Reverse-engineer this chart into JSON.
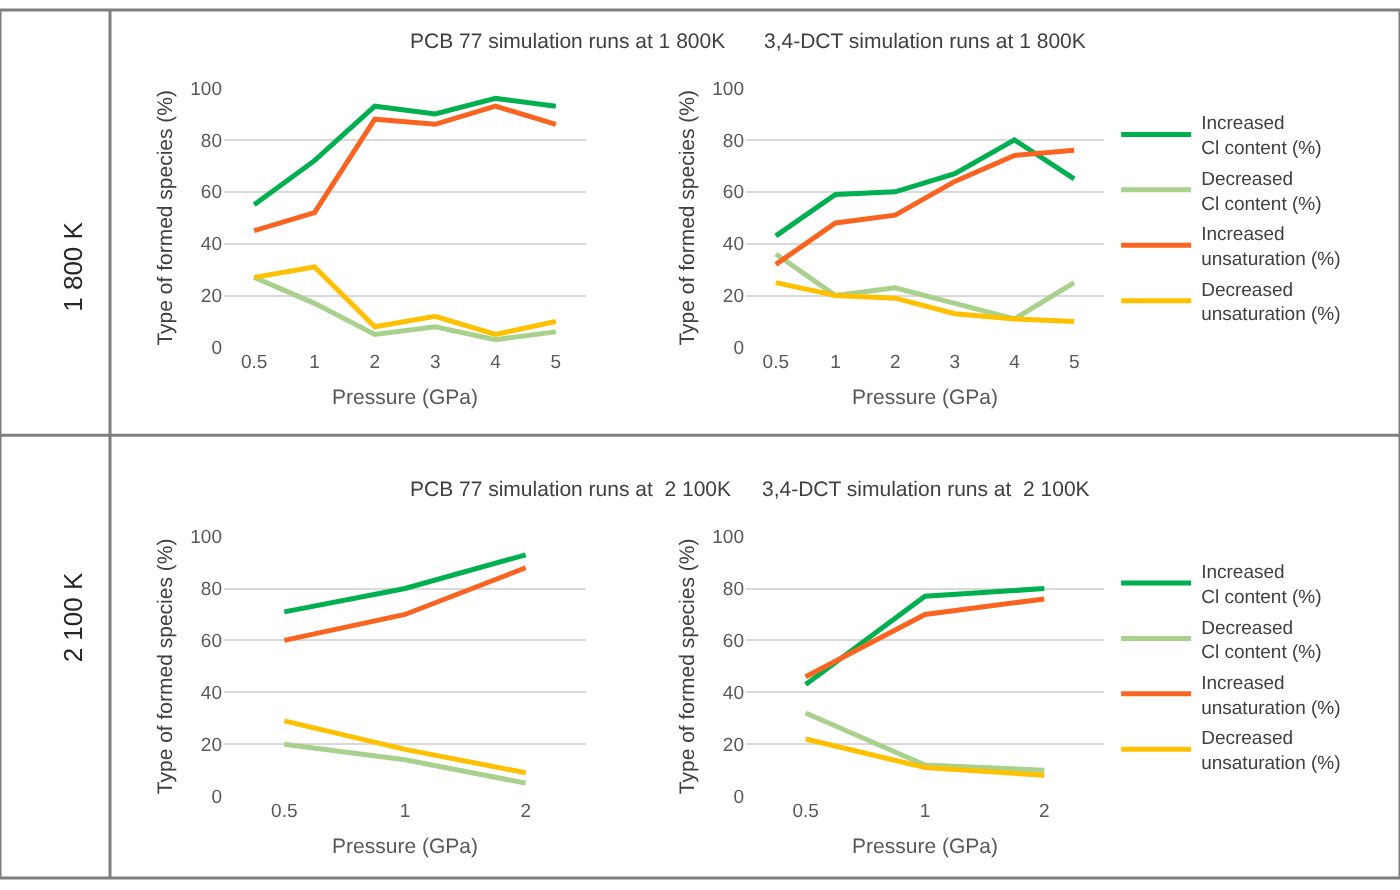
{
  "chart_data": [
    {
      "type": "line",
      "title": "PCB 77 simulation runs at 1 800K",
      "xlabel": "Pressure (GPa)",
      "ylabel": "Type of formed species (%)",
      "annotations": [
        "1 800 K"
      ],
      "categories": [
        "0.5",
        "1",
        "2",
        "3",
        "4",
        "5"
      ],
      "ylim": [
        0,
        100
      ],
      "yticks": [
        0,
        20,
        40,
        60,
        80,
        100
      ],
      "grid": "y",
      "legend": false,
      "marker": "none",
      "line_style": "solid",
      "series": [
        {
          "color": "#00b050",
          "values": [
            55,
            72,
            93,
            90,
            96,
            93
          ]
        },
        {
          "color": "#a9d18e",
          "values": [
            27,
            17,
            5,
            8,
            3,
            6
          ]
        },
        {
          "color": "#fa6420",
          "values": [
            45,
            52,
            88,
            86,
            93,
            86
          ]
        },
        {
          "color": "#ffc000",
          "values": [
            27,
            31,
            8,
            12,
            5,
            10
          ]
        }
      ]
    },
    {
      "type": "line",
      "title": "3,4-DCT simulation runs at 1 800K",
      "xlabel": "Pressure (GPa)",
      "ylabel": "Type of formed species (%)",
      "categories": [
        "0.5",
        "1",
        "2",
        "3",
        "4",
        "5"
      ],
      "ylim": [
        0,
        100
      ],
      "yticks": [
        0,
        20,
        40,
        60,
        80,
        100
      ],
      "grid": "y",
      "legend": "right",
      "marker": "none",
      "line_style": "solid",
      "series": [
        {
          "name": "Increased Cl content (%)",
          "color": "#00b050",
          "values": [
            43,
            59,
            60,
            67,
            80,
            65
          ]
        },
        {
          "name": "Decreased Cl content (%)",
          "color": "#a9d18e",
          "values": [
            36,
            20,
            23,
            17,
            11,
            25
          ]
        },
        {
          "name": "Increased unsaturation (%)",
          "color": "#fa6420",
          "values": [
            32,
            48,
            51,
            64,
            74,
            76
          ]
        },
        {
          "name": "Decreased unsaturation (%)",
          "color": "#ffc000",
          "values": [
            25,
            20,
            19,
            13,
            11,
            10
          ]
        }
      ]
    },
    {
      "type": "line",
      "title": "PCB 77 simulation runs at  2 100K",
      "xlabel": "Pressure (GPa)",
      "ylabel": "Type of formed species (%)",
      "annotations": [
        "2 100 K"
      ],
      "categories": [
        "0.5",
        "1",
        "2"
      ],
      "ylim": [
        0,
        100
      ],
      "yticks": [
        0,
        20,
        40,
        60,
        80,
        100
      ],
      "grid": "y",
      "legend": false,
      "marker": "none",
      "line_style": "solid",
      "series": [
        {
          "color": "#00b050",
          "values": [
            71,
            80,
            93
          ]
        },
        {
          "color": "#a9d18e",
          "values": [
            20,
            14,
            5
          ]
        },
        {
          "color": "#fa6420",
          "values": [
            60,
            70,
            88
          ]
        },
        {
          "color": "#ffc000",
          "values": [
            29,
            18,
            9
          ]
        }
      ]
    },
    {
      "type": "line",
      "title": "3,4-DCT simulation runs at  2 100K",
      "xlabel": "Pressure (GPa)",
      "ylabel": "Type of formed species (%)",
      "categories": [
        "0.5",
        "1",
        "2"
      ],
      "ylim": [
        0,
        100
      ],
      "yticks": [
        0,
        20,
        40,
        60,
        80,
        100
      ],
      "grid": "y",
      "legend": "right",
      "marker": "none",
      "line_style": "solid",
      "series": [
        {
          "name": "Increased Cl content (%)",
          "color": "#00b050",
          "values": [
            43,
            77,
            80
          ]
        },
        {
          "name": "Decreased Cl content (%)",
          "color": "#a9d18e",
          "values": [
            32,
            12,
            10
          ]
        },
        {
          "name": "Increased unsaturation (%)",
          "color": "#fa6420",
          "values": [
            46,
            70,
            76
          ]
        },
        {
          "name": "Decreased unsaturation (%)",
          "color": "#ffc000",
          "values": [
            22,
            11,
            8
          ]
        }
      ]
    }
  ]
}
